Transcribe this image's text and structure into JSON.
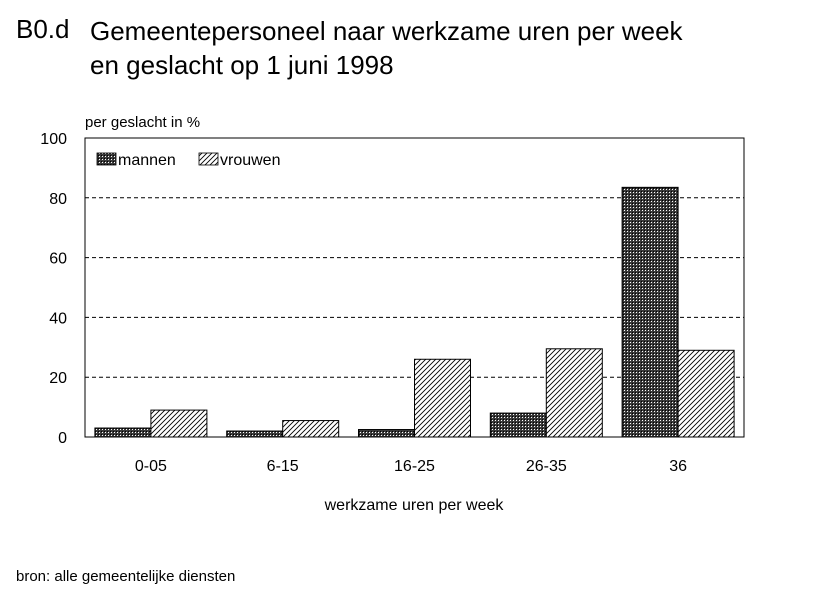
{
  "header": {
    "code": "B0.d",
    "title_line1": "Gemeentepersoneel naar werkzame uren per week",
    "title_line2": "en geslacht op 1 juni 1998"
  },
  "footer": {
    "source": "bron: alle gemeentelijke diensten"
  },
  "colors": {
    "mannen": "#1a1a1a",
    "vrouwen_hatch": "#000000",
    "background": "#ffffff",
    "grid": "#000000"
  },
  "chart_data": {
    "type": "bar",
    "title": "Gemeentepersoneel naar werkzame uren per week en geslacht op 1 juni 1998",
    "ylabel": "per geslacht in %",
    "xlabel": "werkzame uren per week",
    "categories": [
      "0-05",
      "6-15",
      "16-25",
      "26-35",
      "36"
    ],
    "series": [
      {
        "name": "mannen",
        "values": [
          3,
          2,
          2.5,
          8,
          83.5
        ]
      },
      {
        "name": "vrouwen",
        "values": [
          9,
          5.5,
          26,
          29.5,
          29
        ]
      }
    ],
    "ylim": [
      0,
      100
    ],
    "yticks": [
      "0",
      "20",
      "40",
      "60",
      "80",
      "100"
    ],
    "grid": true,
    "legend": "top-left"
  }
}
